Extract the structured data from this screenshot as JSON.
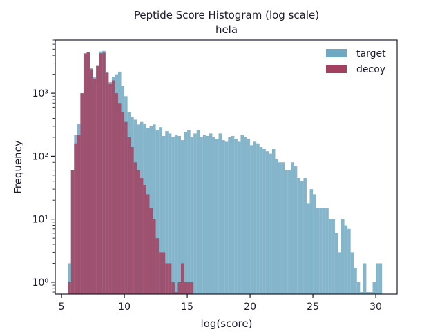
{
  "chart_data": {
    "type": "bar",
    "title": "Peptide Score Histogram (log scale)",
    "subtitle": "hela",
    "xlabel": "log(score)",
    "ylabel": "Frequency",
    "xlim": [
      4.5,
      31.7
    ],
    "ylim": [
      0.65,
      7000
    ],
    "yscale": "log",
    "grid": false,
    "legend_position": "top-right",
    "x_ticks": [
      5,
      10,
      15,
      20,
      25,
      30
    ],
    "x_tick_labels": [
      "5",
      "10",
      "15",
      "20",
      "25",
      "30"
    ],
    "y_ticks": [
      1,
      10,
      100,
      1000
    ],
    "y_tick_labels": [
      "10⁰",
      "10¹",
      "10²",
      "10³"
    ],
    "bin_width": 0.25,
    "series": [
      {
        "name": "target",
        "color": "#6ea8c2",
        "bins": [
          [
            5.5,
            2
          ],
          [
            5.75,
            60
          ],
          [
            6.0,
            220
          ],
          [
            6.25,
            330
          ],
          [
            6.5,
            1000
          ],
          [
            6.75,
            4200
          ],
          [
            7.0,
            4400
          ],
          [
            7.25,
            2500
          ],
          [
            7.5,
            1800
          ],
          [
            7.75,
            2800
          ],
          [
            8.0,
            4600
          ],
          [
            8.25,
            4700
          ],
          [
            8.5,
            2200
          ],
          [
            8.75,
            1500
          ],
          [
            9.0,
            1800
          ],
          [
            9.25,
            2000
          ],
          [
            9.5,
            2200
          ],
          [
            9.75,
            1300
          ],
          [
            10.0,
            900
          ],
          [
            10.25,
            500
          ],
          [
            10.5,
            420
          ],
          [
            10.75,
            380
          ],
          [
            11.0,
            320
          ],
          [
            11.25,
            350
          ],
          [
            11.5,
            330
          ],
          [
            11.75,
            280
          ],
          [
            12.0,
            300
          ],
          [
            12.25,
            320
          ],
          [
            12.5,
            260
          ],
          [
            12.75,
            290
          ],
          [
            13.0,
            210
          ],
          [
            13.25,
            250
          ],
          [
            13.5,
            230
          ],
          [
            13.75,
            200
          ],
          [
            14.0,
            220
          ],
          [
            14.25,
            210
          ],
          [
            14.5,
            180
          ],
          [
            14.75,
            240
          ],
          [
            15.0,
            260
          ],
          [
            15.25,
            200
          ],
          [
            15.5,
            230
          ],
          [
            15.75,
            260
          ],
          [
            16.0,
            200
          ],
          [
            16.25,
            220
          ],
          [
            16.5,
            210
          ],
          [
            16.75,
            230
          ],
          [
            17.0,
            200
          ],
          [
            17.25,
            190
          ],
          [
            17.5,
            230
          ],
          [
            17.75,
            180
          ],
          [
            18.0,
            170
          ],
          [
            18.25,
            200
          ],
          [
            18.5,
            210
          ],
          [
            18.75,
            190
          ],
          [
            19.0,
            170
          ],
          [
            19.25,
            220
          ],
          [
            19.5,
            200
          ],
          [
            19.75,
            190
          ],
          [
            20.0,
            150
          ],
          [
            20.25,
            170
          ],
          [
            20.5,
            160
          ],
          [
            20.75,
            140
          ],
          [
            21.0,
            130
          ],
          [
            21.25,
            120
          ],
          [
            21.5,
            110
          ],
          [
            21.75,
            130
          ],
          [
            22.0,
            90
          ],
          [
            22.25,
            80
          ],
          [
            22.5,
            80
          ],
          [
            22.75,
            60
          ],
          [
            23.0,
            60
          ],
          [
            23.25,
            80
          ],
          [
            23.5,
            70
          ],
          [
            23.75,
            45
          ],
          [
            24.0,
            40
          ],
          [
            24.25,
            45
          ],
          [
            24.5,
            18
          ],
          [
            24.75,
            30
          ],
          [
            25.0,
            25
          ],
          [
            25.25,
            15
          ],
          [
            25.5,
            15
          ],
          [
            25.75,
            15
          ],
          [
            26.0,
            15
          ],
          [
            26.25,
            10
          ],
          [
            26.5,
            10
          ],
          [
            26.75,
            6
          ],
          [
            27.0,
            3
          ],
          [
            27.25,
            10
          ],
          [
            27.5,
            8
          ],
          [
            27.75,
            7
          ],
          [
            28.0,
            3
          ],
          [
            28.25,
            1.7
          ],
          [
            28.5,
            1
          ],
          [
            28.75,
            0.7
          ],
          [
            29.0,
            2
          ],
          [
            29.25,
            0.7
          ],
          [
            29.5,
            0.7
          ],
          [
            29.75,
            1
          ],
          [
            30.0,
            2
          ],
          [
            30.25,
            2
          ]
        ]
      },
      {
        "name": "decoy",
        "color": "#a2415f",
        "bins": [
          [
            5.5,
            1
          ],
          [
            5.75,
            60
          ],
          [
            6.0,
            160
          ],
          [
            6.25,
            220
          ],
          [
            6.5,
            1000
          ],
          [
            6.75,
            4300
          ],
          [
            7.0,
            4500
          ],
          [
            7.25,
            2400
          ],
          [
            7.5,
            1700
          ],
          [
            7.75,
            2700
          ],
          [
            8.0,
            4300
          ],
          [
            8.25,
            4400
          ],
          [
            8.5,
            2100
          ],
          [
            8.75,
            1400
          ],
          [
            9.0,
            1600
          ],
          [
            9.25,
            1000
          ],
          [
            9.5,
            700
          ],
          [
            9.75,
            500
          ],
          [
            10.0,
            350
          ],
          [
            10.25,
            200
          ],
          [
            10.5,
            140
          ],
          [
            10.75,
            80
          ],
          [
            11.0,
            60
          ],
          [
            11.25,
            45
          ],
          [
            11.5,
            35
          ],
          [
            11.75,
            25
          ],
          [
            12.0,
            15
          ],
          [
            12.25,
            10
          ],
          [
            12.5,
            5
          ],
          [
            12.75,
            3
          ],
          [
            13.0,
            3
          ],
          [
            13.25,
            2
          ],
          [
            13.5,
            2
          ],
          [
            13.75,
            1
          ],
          [
            14.0,
            0.7
          ],
          [
            14.25,
            1
          ],
          [
            14.5,
            2
          ],
          [
            14.75,
            1
          ],
          [
            15.0,
            1
          ],
          [
            15.25,
            1
          ]
        ]
      }
    ]
  }
}
